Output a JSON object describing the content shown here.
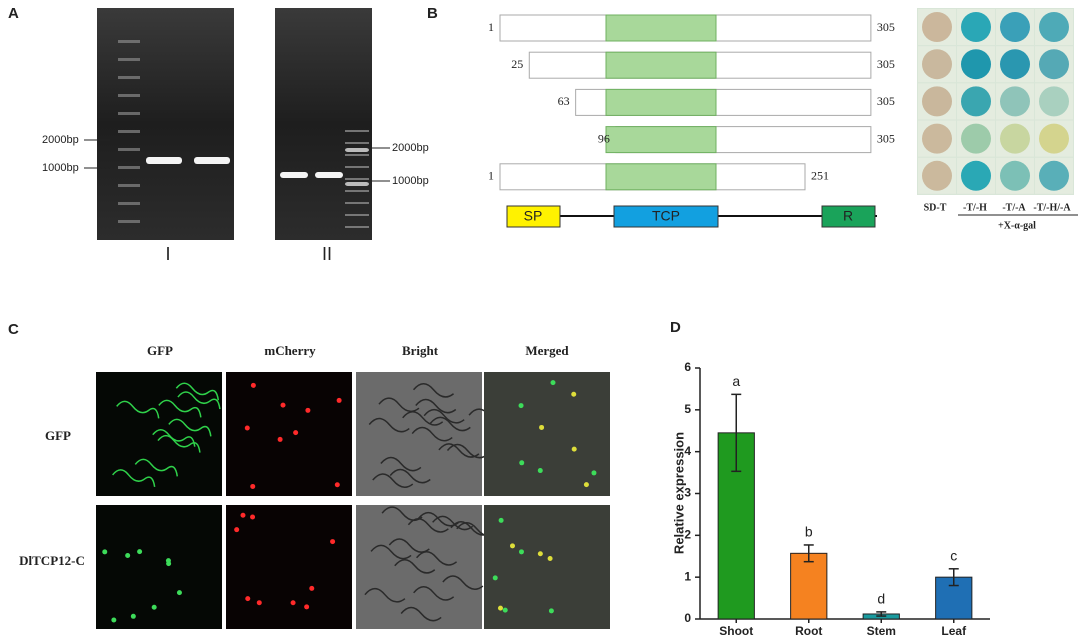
{
  "panel_a": {
    "label": "A",
    "markers_left": [
      "2000bp",
      "1000bp"
    ],
    "markers_right": [
      "2000bp",
      "1000bp"
    ],
    "lanes": [
      "I",
      "II"
    ]
  },
  "panel_b": {
    "label": "B",
    "constructs": [
      {
        "start": 1,
        "end": 305
      },
      {
        "start": 25,
        "end": 305
      },
      {
        "start": 63,
        "end": 305
      },
      {
        "start": 96,
        "end": 305
      },
      {
        "start": 1,
        "end": 251
      }
    ],
    "domains": [
      "SP",
      "TCP",
      "R"
    ],
    "columns": [
      "SD-T",
      "-T/-H",
      "-T/-A",
      "-T/-H/-A"
    ],
    "treatment": "+X-α-gal"
  },
  "panel_c": {
    "label": "C",
    "columns": [
      "GFP",
      "mCherry",
      "Bright",
      "Merged"
    ],
    "rows": [
      "GFP",
      "DlTCP12-C"
    ]
  },
  "chart_data": {
    "type": "bar",
    "label": "D",
    "y_label": "Relative expression",
    "categories": [
      "Shoot",
      "Root",
      "Stem",
      "Leaf"
    ],
    "values": [
      4.45,
      1.57,
      0.12,
      1.0
    ],
    "errors": [
      0.92,
      0.2,
      0.05,
      0.2
    ],
    "significance_letters": [
      "a",
      "b",
      "d",
      "c"
    ],
    "colors": [
      "#1f9a1f",
      "#f58220",
      "#1a9a9e",
      "#1f6fb4"
    ],
    "ylim": [
      0,
      6
    ],
    "yticks": [
      0,
      1,
      2,
      3,
      4,
      5,
      6
    ]
  }
}
